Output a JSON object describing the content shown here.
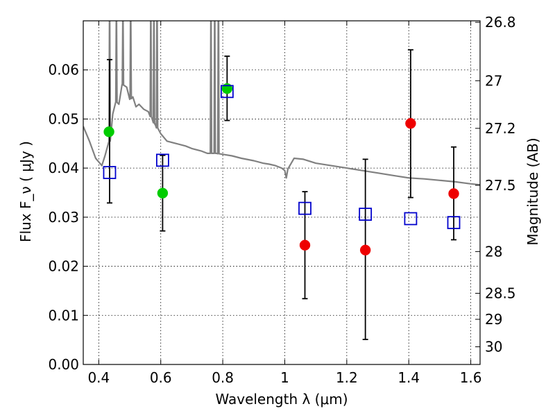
{
  "chart_data": {
    "type": "scatter",
    "title": "",
    "xlabel": "Wavelength  λ (μm)",
    "ylabel": "Flux  F_ν  ( μJy )",
    "y2label": "Magnitude (AB)",
    "xlim": [
      0.35,
      1.63
    ],
    "ylim": [
      0.0,
      0.07
    ],
    "grid": true,
    "x_ticks": [
      0.4,
      0.6,
      0.8,
      1.0,
      1.2,
      1.4,
      1.6
    ],
    "x_tick_labels": [
      "0.4",
      "0.6",
      "0.8",
      "1",
      "1.2",
      "1.4",
      "1.6"
    ],
    "y_ticks": [
      0.0,
      0.01,
      0.02,
      0.03,
      0.04,
      0.05,
      0.06
    ],
    "y_tick_labels": [
      "0.00",
      "0.01",
      "0.02",
      "0.03",
      "0.04",
      "0.05",
      "0.06"
    ],
    "y2_ticks": [
      {
        "label": "26.8",
        "flux": 0.0697
      },
      {
        "label": "27",
        "flux": 0.0578
      },
      {
        "label": "27.2",
        "flux": 0.0481
      },
      {
        "label": "27.5",
        "flux": 0.0365
      },
      {
        "label": "28",
        "flux": 0.023
      },
      {
        "label": "28.5",
        "flux": 0.0145
      },
      {
        "label": "29",
        "flux": 0.0092
      },
      {
        "label": "30",
        "flux": 0.0036
      }
    ],
    "series": [
      {
        "marker": "circle",
        "color": "#00cc00",
        "points": [
          {
            "x": 0.433,
            "y": 0.0474
          },
          {
            "x": 0.606,
            "y": 0.0349
          },
          {
            "x": 0.814,
            "y": 0.0562
          }
        ]
      },
      {
        "marker": "circle",
        "color": "#ee0000",
        "points": [
          {
            "x": 1.065,
            "y": 0.0243
          },
          {
            "x": 1.26,
            "y": 0.0233
          },
          {
            "x": 1.406,
            "y": 0.0491
          },
          {
            "x": 1.545,
            "y": 0.0348
          }
        ]
      },
      {
        "marker": "square",
        "color": "#0000cc",
        "points": [
          {
            "x": 0.435,
            "y": 0.0391
          },
          {
            "x": 0.606,
            "y": 0.0416
          },
          {
            "x": 0.814,
            "y": 0.0556
          },
          {
            "x": 1.065,
            "y": 0.0318
          },
          {
            "x": 1.26,
            "y": 0.0306
          },
          {
            "x": 1.406,
            "y": 0.0297
          },
          {
            "x": 1.545,
            "y": 0.0289
          }
        ]
      }
    ],
    "error_bars": [
      {
        "x": 0.435,
        "ylo": 0.0329,
        "yhi": 0.0621
      },
      {
        "x": 0.606,
        "ylo": 0.0272,
        "yhi": 0.0426
      },
      {
        "x": 0.814,
        "ylo": 0.0497,
        "yhi": 0.0628
      },
      {
        "x": 1.065,
        "ylo": 0.0134,
        "yhi": 0.0352
      },
      {
        "x": 1.26,
        "ylo": 0.0051,
        "yhi": 0.0418
      },
      {
        "x": 1.406,
        "ylo": 0.034,
        "yhi": 0.0641
      },
      {
        "x": 1.545,
        "ylo": 0.0254,
        "yhi": 0.0443
      }
    ],
    "model_spectrum": {
      "color": "#808080",
      "points": [
        [
          0.35,
          0.0485
        ],
        [
          0.37,
          0.0455
        ],
        [
          0.39,
          0.042
        ],
        [
          0.41,
          0.0405
        ],
        [
          0.42,
          0.0425
        ],
        [
          0.435,
          0.0455
        ],
        [
          0.445,
          0.051
        ],
        [
          0.455,
          0.0535
        ],
        [
          0.465,
          0.053
        ],
        [
          0.475,
          0.057
        ],
        [
          0.49,
          0.0565
        ],
        [
          0.5,
          0.054
        ],
        [
          0.51,
          0.0545
        ],
        [
          0.52,
          0.0525
        ],
        [
          0.53,
          0.053
        ],
        [
          0.545,
          0.052
        ],
        [
          0.56,
          0.0515
        ],
        [
          0.58,
          0.049
        ],
        [
          0.6,
          0.047
        ],
        [
          0.62,
          0.0455
        ],
        [
          0.65,
          0.045
        ],
        [
          0.68,
          0.0445
        ],
        [
          0.7,
          0.044
        ],
        [
          0.73,
          0.0435
        ],
        [
          0.75,
          0.043
        ],
        [
          0.78,
          0.043
        ],
        [
          0.8,
          0.0428
        ],
        [
          0.83,
          0.0425
        ],
        [
          0.86,
          0.042
        ],
        [
          0.9,
          0.0415
        ],
        [
          0.93,
          0.041
        ],
        [
          0.95,
          0.0408
        ],
        [
          0.97,
          0.0405
        ],
        [
          0.99,
          0.04
        ],
        [
          1.0,
          0.0395
        ],
        [
          1.005,
          0.038
        ],
        [
          1.01,
          0.0398
        ],
        [
          1.03,
          0.042
        ],
        [
          1.06,
          0.0418
        ],
        [
          1.1,
          0.041
        ],
        [
          1.15,
          0.0405
        ],
        [
          1.2,
          0.04
        ],
        [
          1.25,
          0.0395
        ],
        [
          1.3,
          0.039
        ],
        [
          1.35,
          0.0385
        ],
        [
          1.4,
          0.038
        ],
        [
          1.45,
          0.0378
        ],
        [
          1.5,
          0.0375
        ],
        [
          1.55,
          0.0372
        ],
        [
          1.6,
          0.0368
        ],
        [
          1.63,
          0.0366
        ]
      ],
      "emission_lines": [
        {
          "x": 0.435,
          "peak": 0.07
        },
        {
          "x": 0.457,
          "peak": 0.07
        },
        {
          "x": 0.478,
          "peak": 0.07
        },
        {
          "x": 0.503,
          "peak": 0.07
        },
        {
          "x": 0.568,
          "peak": 0.07
        },
        {
          "x": 0.578,
          "peak": 0.07
        },
        {
          "x": 0.588,
          "peak": 0.07
        },
        {
          "x": 0.762,
          "peak": 0.07
        },
        {
          "x": 0.774,
          "peak": 0.07
        },
        {
          "x": 0.786,
          "peak": 0.07
        }
      ]
    }
  }
}
